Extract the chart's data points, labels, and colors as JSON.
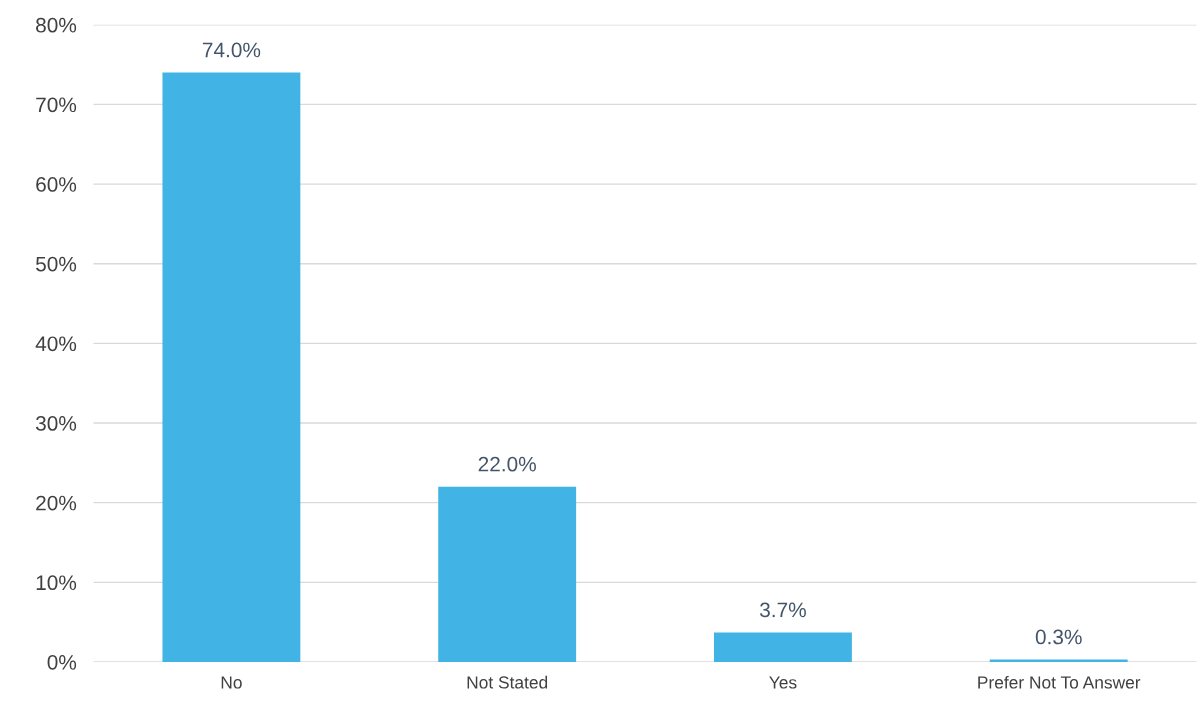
{
  "chart_data": {
    "type": "bar",
    "categories": [
      "No",
      "Not Stated",
      "Yes",
      "Prefer Not To Answer"
    ],
    "values": [
      74.0,
      22.0,
      3.7,
      0.3
    ],
    "value_labels": [
      "74.0%",
      "22.0%",
      "3.7%",
      "0.3%"
    ],
    "color": "#41b4e5",
    "ylim": [
      0,
      80
    ],
    "yticks": [
      {
        "value": 0,
        "label": "0%"
      },
      {
        "value": 10,
        "label": "10%"
      },
      {
        "value": 20,
        "label": "20%"
      },
      {
        "value": 30,
        "label": "30%"
      },
      {
        "value": 40,
        "label": "40%"
      },
      {
        "value": 50,
        "label": "50%"
      },
      {
        "value": 60,
        "label": "60%"
      },
      {
        "value": 70,
        "label": "70%"
      },
      {
        "value": 80,
        "label": "80%"
      }
    ],
    "grid": "y"
  }
}
